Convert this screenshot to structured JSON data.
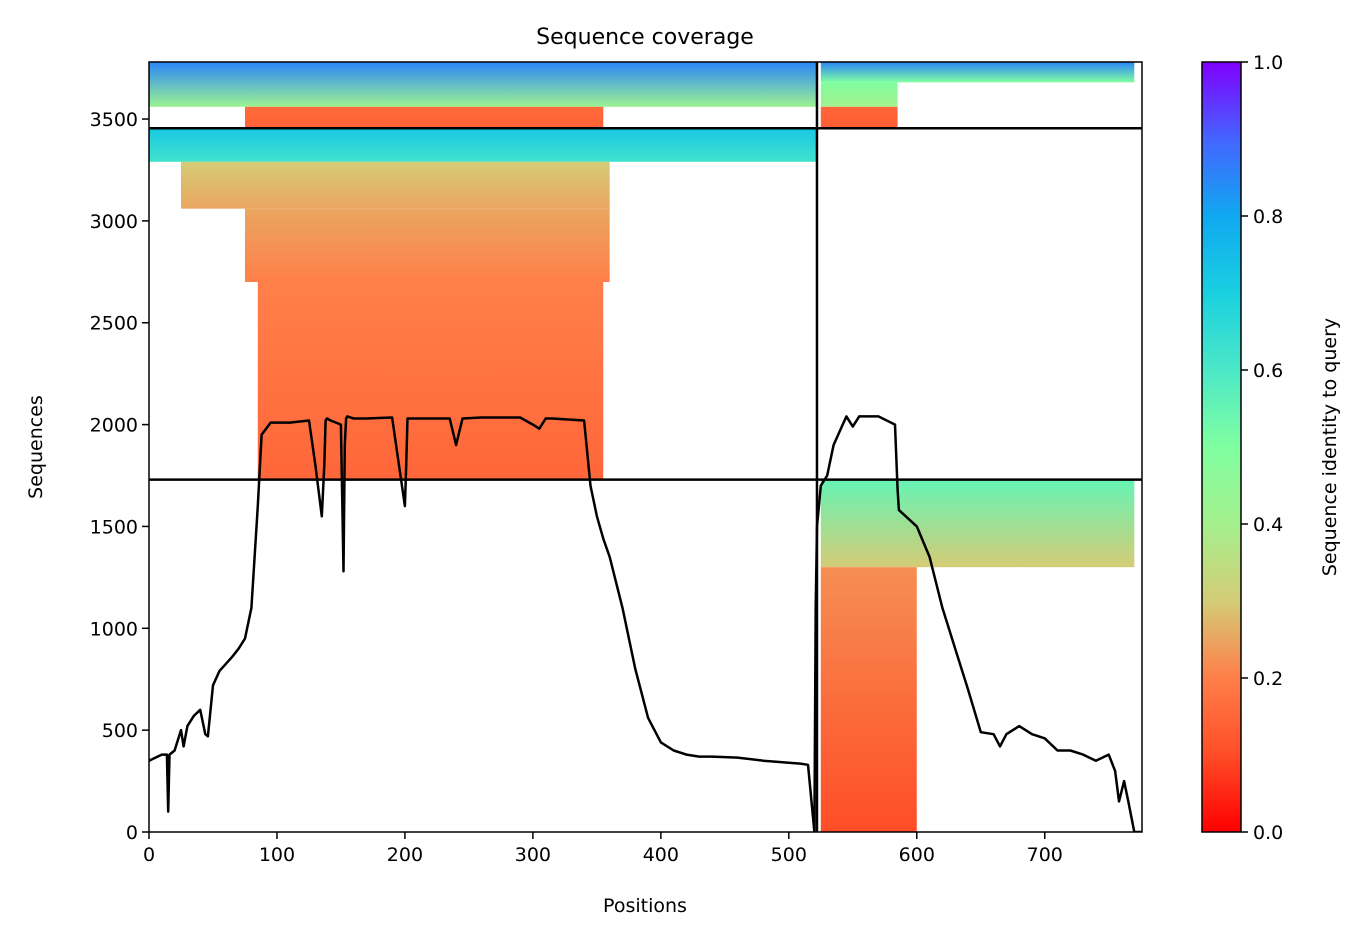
{
  "chart_data": {
    "type": "heatmap",
    "title": "Sequence coverage",
    "xlabel": "Positions",
    "ylabel": "Sequences",
    "xlim": [
      0,
      776
    ],
    "ylim": [
      0,
      3780
    ],
    "x_ticks": [
      0,
      100,
      200,
      300,
      400,
      500,
      600,
      700
    ],
    "y_ticks": [
      0,
      500,
      1000,
      1500,
      2000,
      2500,
      3000,
      3500
    ],
    "grid": false,
    "colorbar": {
      "label": "Sequence identity to query",
      "colormap": "rainbow_r",
      "range": [
        0.0,
        1.0
      ],
      "ticks": [
        0.0,
        0.2,
        0.4,
        0.6,
        0.8,
        1.0
      ]
    },
    "chain_boundary_position": 522,
    "block_boundaries_sequences": [
      1730,
      3455
    ],
    "coverage_blocks": [
      {
        "x": [
          0,
          522
        ],
        "y": [
          3560,
          3780
        ],
        "identity_top": 0.85,
        "identity_bottom": 0.42
      },
      {
        "x": [
          75,
          355
        ],
        "y": [
          3455,
          3560
        ],
        "identity_top": 0.16,
        "identity_bottom": 0.14
      },
      {
        "x": [
          0,
          522
        ],
        "y": [
          3290,
          3455
        ],
        "identity_top": 0.72,
        "identity_bottom": 0.62
      },
      {
        "x": [
          25,
          360
        ],
        "y": [
          3060,
          3290
        ],
        "identity_top": 0.3,
        "identity_bottom": 0.25
      },
      {
        "x": [
          75,
          360
        ],
        "y": [
          2700,
          3060
        ],
        "identity_top": 0.25,
        "identity_bottom": 0.2
      },
      {
        "x": [
          85,
          355
        ],
        "y": [
          1730,
          2700
        ],
        "identity_top": 0.2,
        "identity_bottom": 0.15
      },
      {
        "x": [
          525,
          770
        ],
        "y": [
          3680,
          3780
        ],
        "identity_top": 0.85,
        "identity_bottom": 0.5
      },
      {
        "x": [
          525,
          585
        ],
        "y": [
          3560,
          3680
        ],
        "identity_top": 0.5,
        "identity_bottom": 0.4
      },
      {
        "x": [
          525,
          585
        ],
        "y": [
          3455,
          3560
        ],
        "identity_top": 0.15,
        "identity_bottom": 0.13
      },
      {
        "x": [
          525,
          770
        ],
        "y": [
          1300,
          1730
        ],
        "identity_top": 0.55,
        "identity_bottom": 0.3
      },
      {
        "x": [
          525,
          600
        ],
        "y": [
          0,
          1300
        ],
        "identity_top": 0.22,
        "identity_bottom": 0.1
      }
    ],
    "coverage_line": {
      "name": "",
      "x": [
        0,
        10,
        14,
        15,
        16,
        20,
        25,
        27,
        30,
        35,
        40,
        44,
        46,
        50,
        55,
        65,
        70,
        75,
        80,
        85,
        88,
        95,
        110,
        125,
        130,
        135,
        137,
        138,
        139,
        142,
        150,
        152,
        153,
        154,
        155,
        160,
        170,
        190,
        200,
        201,
        202,
        205,
        220,
        235,
        240,
        245,
        260,
        290,
        300,
        305,
        310,
        315,
        340,
        345,
        350,
        355,
        360,
        370,
        380,
        390,
        400,
        410,
        420,
        430,
        440,
        460,
        480,
        500,
        510,
        515,
        520,
        521,
        522,
        525,
        530,
        535,
        545,
        550,
        555,
        560,
        570,
        583,
        585,
        586,
        600,
        610,
        620,
        630,
        640,
        650,
        660,
        665,
        670,
        680,
        690,
        700,
        710,
        720,
        730,
        740,
        750,
        755,
        758,
        762,
        765,
        770,
        776
      ],
      "y": [
        350,
        380,
        380,
        100,
        380,
        400,
        500,
        420,
        520,
        570,
        600,
        480,
        470,
        720,
        790,
        860,
        900,
        950,
        1100,
        1600,
        1950,
        2010,
        2010,
        2020,
        1800,
        1550,
        1800,
        2020,
        2030,
        2020,
        2000,
        1280,
        1900,
        2030,
        2040,
        2030,
        2030,
        2035,
        1600,
        1800,
        2030,
        2030,
        2030,
        2030,
        1900,
        2030,
        2035,
        2035,
        2000,
        1980,
        2030,
        2030,
        2020,
        1700,
        1550,
        1440,
        1350,
        1100,
        800,
        560,
        440,
        400,
        380,
        370,
        370,
        365,
        350,
        340,
        335,
        330,
        0,
        1100,
        1500,
        1700,
        1750,
        1900,
        2040,
        1990,
        2040,
        2040,
        2040,
        2000,
        1680,
        1580,
        1500,
        1350,
        1100,
        900,
        700,
        490,
        480,
        420,
        480,
        520,
        480,
        460,
        400,
        400,
        380,
        350,
        380,
        300,
        150,
        250,
        160,
        0,
        0
      ]
    }
  }
}
